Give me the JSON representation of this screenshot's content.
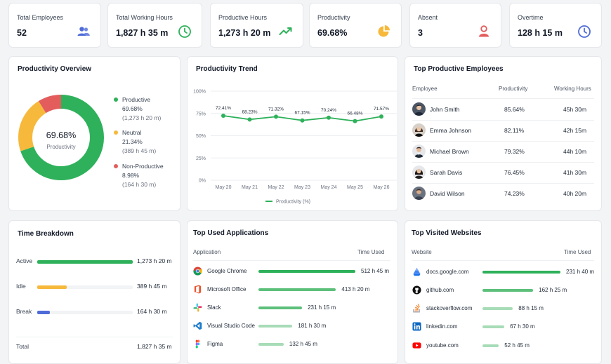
{
  "stats": [
    {
      "label": "Total Employees",
      "value": "52",
      "icon": "users-icon",
      "color": "#4f6bd8"
    },
    {
      "label": "Total Working Hours",
      "value": "1,827 h 35 m",
      "icon": "clock-icon",
      "color": "#2eb15a"
    },
    {
      "label": "Productive Hours",
      "value": "1,273 h 20 m",
      "icon": "trend-up-icon",
      "color": "#2eb15a"
    },
    {
      "label": "Productivity",
      "value": "69.68%",
      "icon": "pie-icon",
      "color": "#f6b93b"
    },
    {
      "label": "Absent",
      "value": "3",
      "icon": "user-icon",
      "color": "#e35d5d"
    },
    {
      "label": "Overtime",
      "value": "128 h 15 m",
      "icon": "clock-icon",
      "color": "#4f6bd8"
    }
  ],
  "overview": {
    "title": "Productivity Overview",
    "center_value": "69.68%",
    "center_label": "Productivity",
    "segments": [
      {
        "name": "Productive",
        "percent": "69.68%",
        "hours": "(1,273 h 20 m)",
        "value": 69.68,
        "color": "#2eb15a"
      },
      {
        "name": "Neutral",
        "percent": "21.34%",
        "hours": "(389 h 45 m)",
        "value": 21.34,
        "color": "#f6b93b"
      },
      {
        "name": "Non-Productive",
        "percent": "8.98%",
        "hours": "(164 h 30 m)",
        "value": 8.98,
        "color": "#e35d5d"
      }
    ]
  },
  "trend": {
    "title": "Productivity Trend",
    "legend": "Productivity (%)"
  },
  "chart_data": {
    "type": "line",
    "title": "Productivity Trend",
    "categories": [
      "May 20",
      "May 21",
      "May 22",
      "May 23",
      "May 24",
      "May 25",
      "May 26"
    ],
    "series": [
      {
        "name": "Productivity (%)",
        "values": [
          72.41,
          68.23,
          71.32,
          67.15,
          70.24,
          66.48,
          71.57
        ]
      }
    ],
    "point_labels": [
      "72.41%",
      "68.23%",
      "71.32%",
      "67.15%",
      "70.24%",
      "66.48%",
      "71.57%"
    ],
    "ylim": [
      0,
      100
    ],
    "yticks": [
      "0%",
      "25%",
      "50%",
      "75%",
      "100%"
    ],
    "color": "#2eb15a",
    "legend": "bottom"
  },
  "employees": {
    "title": "Top Productive Employees",
    "headers": {
      "employee": "Employee",
      "productivity": "Productivity",
      "hours": "Working Hours"
    },
    "rows": [
      {
        "name": "John Smith",
        "productivity": "85.64%",
        "hours": "45h 30m"
      },
      {
        "name": "Emma Johnson",
        "productivity": "82.11%",
        "hours": "42h 15m"
      },
      {
        "name": "Michael Brown",
        "productivity": "79.32%",
        "hours": "44h 10m"
      },
      {
        "name": "Sarah Davis",
        "productivity": "76.45%",
        "hours": "41h 30m"
      },
      {
        "name": "David Wilson",
        "productivity": "74.23%",
        "hours": "40h 20m"
      }
    ]
  },
  "breakdown": {
    "title": "Time Breakdown",
    "rows": [
      {
        "label": "Active",
        "value": "1,273 h 20 m",
        "fraction": 1.0,
        "color": "#2eb15a"
      },
      {
        "label": "Idle",
        "value": "389 h 45 m",
        "fraction": 0.31,
        "color": "#f6b93b"
      },
      {
        "label": "Break",
        "value": "164 h 30 m",
        "fraction": 0.13,
        "color": "#4f6bd8"
      }
    ],
    "total_label": "Total",
    "total_value": "1,827 h 35 m"
  },
  "apps": {
    "title": "Top Used Applications",
    "headers": {
      "name": "Application",
      "time": "Time Used"
    },
    "rows": [
      {
        "name": "Google Chrome",
        "time": "512 h 45 m",
        "fraction": 1.0,
        "icon": "chrome-icon"
      },
      {
        "name": "Microsoft Office",
        "time": "413 h 20 m",
        "fraction": 0.8,
        "icon": "office-icon"
      },
      {
        "name": "Slack",
        "time": "231 h 15 m",
        "fraction": 0.45,
        "icon": "slack-icon"
      },
      {
        "name": "Visual Studio Code",
        "time": "181 h 30 m",
        "fraction": 0.35,
        "icon": "vscode-icon"
      },
      {
        "name": "Figma",
        "time": "132 h 45 m",
        "fraction": 0.26,
        "icon": "figma-icon"
      }
    ]
  },
  "websites": {
    "title": "Top Visited Websites",
    "headers": {
      "name": "Website",
      "time": "Time Used"
    },
    "rows": [
      {
        "name": "docs.google.com",
        "time": "231 h 40 m",
        "fraction": 1.0,
        "icon": "google-docs-icon"
      },
      {
        "name": "github.com",
        "time": "162 h 25 m",
        "fraction": 0.65,
        "icon": "github-icon"
      },
      {
        "name": "stackoverflow.com",
        "time": "88 h 15 m",
        "fraction": 0.39,
        "icon": "stackoverflow-icon"
      },
      {
        "name": "linkedin.com",
        "time": "67 h 30 m",
        "fraction": 0.28,
        "icon": "linkedin-icon"
      },
      {
        "name": "youtube.com",
        "time": "52 h 45 m",
        "fraction": 0.21,
        "icon": "youtube-icon"
      }
    ]
  }
}
